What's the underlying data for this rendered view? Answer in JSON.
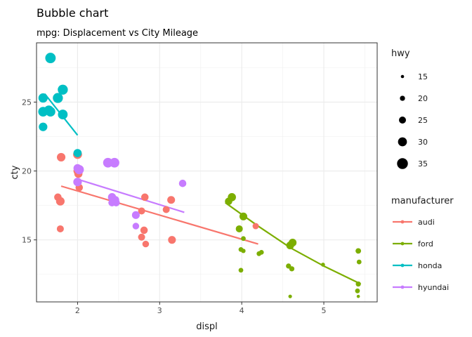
{
  "chart_data": {
    "type": "scatter",
    "title": "Bubble chart",
    "subtitle": "mpg: Displacement vs City Mileage",
    "xlabel": "displ",
    "ylabel": "cty",
    "xlim": [
      1.5,
      5.65
    ],
    "ylim": [
      10.5,
      29.3
    ],
    "x_ticks": [
      2,
      3,
      4,
      5
    ],
    "y_ticks": [
      15,
      20,
      25
    ],
    "grid": true,
    "size_legend": {
      "title": "hwy",
      "values": [
        15,
        20,
        25,
        30,
        35
      ]
    },
    "color_legend": {
      "title": "manufacturer",
      "position": "right"
    },
    "series": [
      {
        "name": "audi",
        "color": "#F8766D",
        "points": [
          {
            "x": 1.8,
            "y": 21.0,
            "hwy": 29
          },
          {
            "x": 1.79,
            "y": 17.8,
            "hwy": 29
          },
          {
            "x": 1.76,
            "y": 18.1,
            "hwy": 26
          },
          {
            "x": 1.79,
            "y": 15.8,
            "hwy": 25
          },
          {
            "x": 2.0,
            "y": 21.2,
            "hwy": 30
          },
          {
            "x": 2.01,
            "y": 19.8,
            "hwy": 28
          },
          {
            "x": 2.02,
            "y": 18.8,
            "hwy": 26
          },
          {
            "x": 2.0,
            "y": 20.0,
            "hwy": 28
          },
          {
            "x": 2.78,
            "y": 17.1,
            "hwy": 25
          },
          {
            "x": 2.82,
            "y": 18.1,
            "hwy": 26
          },
          {
            "x": 2.81,
            "y": 15.7,
            "hwy": 26
          },
          {
            "x": 2.78,
            "y": 15.2,
            "hwy": 25
          },
          {
            "x": 2.83,
            "y": 14.7,
            "hwy": 24
          },
          {
            "x": 3.08,
            "y": 17.2,
            "hwy": 25
          },
          {
            "x": 3.14,
            "y": 17.9,
            "hwy": 27
          },
          {
            "x": 3.15,
            "y": 15.0,
            "hwy": 27
          },
          {
            "x": 4.17,
            "y": 16.0,
            "hwy": 23
          }
        ],
        "trend": [
          [
            1.8,
            18.9
          ],
          [
            4.2,
            14.7
          ]
        ]
      },
      {
        "name": "ford",
        "color": "#7CAE00",
        "points": [
          {
            "x": 3.84,
            "y": 17.8,
            "hwy": 26
          },
          {
            "x": 3.88,
            "y": 18.1,
            "hwy": 28
          },
          {
            "x": 3.97,
            "y": 15.8,
            "hwy": 25
          },
          {
            "x": 4.02,
            "y": 16.7,
            "hwy": 27
          },
          {
            "x": 4.02,
            "y": 15.1,
            "hwy": 19
          },
          {
            "x": 3.99,
            "y": 14.3,
            "hwy": 19
          },
          {
            "x": 4.02,
            "y": 14.2,
            "hwy": 18
          },
          {
            "x": 3.99,
            "y": 12.8,
            "hwy": 19
          },
          {
            "x": 4.21,
            "y": 14.0,
            "hwy": 19
          },
          {
            "x": 4.24,
            "y": 14.1,
            "hwy": 19
          },
          {
            "x": 4.59,
            "y": 14.6,
            "hwy": 27
          },
          {
            "x": 4.62,
            "y": 14.8,
            "hwy": 27
          },
          {
            "x": 4.57,
            "y": 13.1,
            "hwy": 20
          },
          {
            "x": 4.61,
            "y": 12.9,
            "hwy": 20
          },
          {
            "x": 4.59,
            "y": 10.9,
            "hwy": 16
          },
          {
            "x": 4.99,
            "y": 13.2,
            "hwy": 17
          },
          {
            "x": 5.42,
            "y": 14.2,
            "hwy": 21
          },
          {
            "x": 5.43,
            "y": 13.4,
            "hwy": 19
          },
          {
            "x": 5.42,
            "y": 11.8,
            "hwy": 20
          },
          {
            "x": 5.41,
            "y": 11.3,
            "hwy": 19
          },
          {
            "x": 5.42,
            "y": 10.9,
            "hwy": 15
          }
        ],
        "trend": [
          [
            3.8,
            17.7
          ],
          [
            4.2,
            16.0
          ],
          [
            4.6,
            14.4
          ],
          [
            5.0,
            13.1
          ],
          [
            5.45,
            11.8
          ]
        ]
      },
      {
        "name": "honda",
        "color": "#00BFC4",
        "points": [
          {
            "x": 1.67,
            "y": 28.2,
            "hwy": 34
          },
          {
            "x": 1.58,
            "y": 25.3,
            "hwy": 31
          },
          {
            "x": 1.58,
            "y": 24.3,
            "hwy": 32
          },
          {
            "x": 1.58,
            "y": 23.2,
            "hwy": 29
          },
          {
            "x": 1.67,
            "y": 24.3,
            "hwy": 32
          },
          {
            "x": 1.65,
            "y": 24.4,
            "hwy": 32
          },
          {
            "x": 1.76,
            "y": 25.3,
            "hwy": 33
          },
          {
            "x": 1.82,
            "y": 25.9,
            "hwy": 33
          },
          {
            "x": 1.82,
            "y": 24.1,
            "hwy": 32
          },
          {
            "x": 2.0,
            "y": 21.3,
            "hwy": 28
          }
        ],
        "trend": [
          [
            1.6,
            25.6
          ],
          [
            2.0,
            22.6
          ]
        ]
      },
      {
        "name": "hyundai",
        "color": "#C77CFF",
        "points": [
          {
            "x": 2.0,
            "y": 20.2,
            "hwy": 28
          },
          {
            "x": 2.0,
            "y": 19.2,
            "hwy": 29
          },
          {
            "x": 2.02,
            "y": 20.1,
            "hwy": 31
          },
          {
            "x": 2.37,
            "y": 20.6,
            "hwy": 32
          },
          {
            "x": 2.45,
            "y": 20.6,
            "hwy": 32
          },
          {
            "x": 2.42,
            "y": 18.1,
            "hwy": 28
          },
          {
            "x": 2.46,
            "y": 17.9,
            "hwy": 27
          },
          {
            "x": 2.42,
            "y": 17.7,
            "hwy": 26
          },
          {
            "x": 2.47,
            "y": 17.7,
            "hwy": 26
          },
          {
            "x": 2.71,
            "y": 16.8,
            "hwy": 27
          },
          {
            "x": 2.71,
            "y": 16.0,
            "hwy": 24
          },
          {
            "x": 3.28,
            "y": 19.1,
            "hwy": 26
          }
        ],
        "trend": [
          [
            2.0,
            19.4
          ],
          [
            3.3,
            17.0
          ]
        ]
      }
    ]
  }
}
